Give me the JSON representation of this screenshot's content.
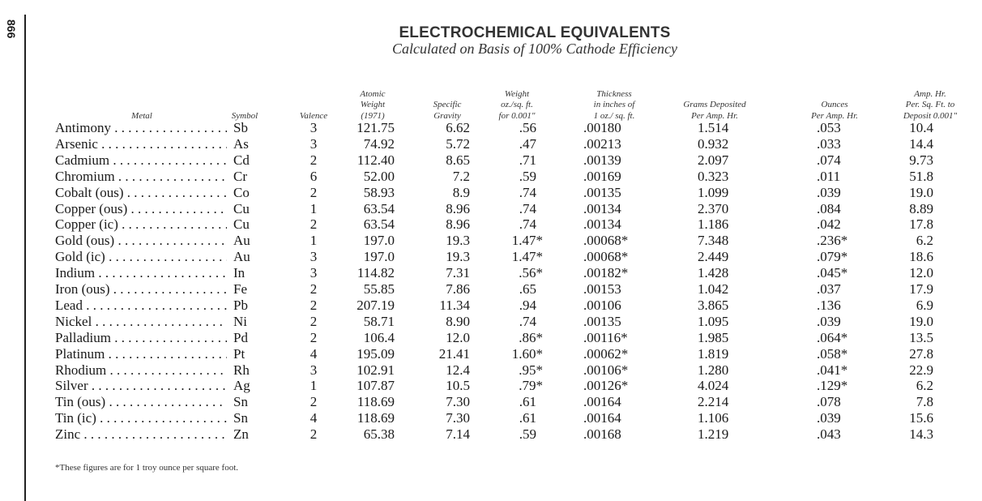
{
  "page_number": "866",
  "title": "ELECTROCHEMICAL EQUIVALENTS",
  "subtitle": "Calculated on Basis of 100% Cathode Efficiency",
  "headers": {
    "metal": [
      "Metal"
    ],
    "symbol": [
      "Symbol"
    ],
    "valence": [
      "Valence"
    ],
    "atomic_weight": [
      "Atomic",
      "Weight",
      "(1971)"
    ],
    "specific_gravity": [
      "Specific",
      "Gravity"
    ],
    "weight": [
      "Weight",
      "oz./sq. ft.",
      "for 0.001\""
    ],
    "thickness": [
      "Thickness",
      "in inches of",
      "1 oz./ sq. ft."
    ],
    "grams": [
      "Grams Deposited",
      "Per Amp. Hr."
    ],
    "ounces": [
      "Ounces",
      "Per Amp. Hr."
    ],
    "amp_hr": [
      "Amp. Hr.",
      "Per. Sq. Ft. to",
      "Deposit 0.001\""
    ]
  },
  "rows": [
    [
      "Antimony",
      "Sb",
      "3",
      "121.75",
      "6.62",
      ".56",
      ".00180",
      "1.514",
      ".053",
      "10.4"
    ],
    [
      "Arsenic",
      "As",
      "3",
      "74.92",
      "5.72",
      ".47",
      ".00213",
      "0.932",
      ".033",
      "14.4"
    ],
    [
      "Cadmium",
      "Cd",
      "2",
      "112.40",
      "8.65",
      ".71",
      ".00139",
      "2.097",
      ".074",
      "9.73"
    ],
    [
      "Chromium",
      "Cr",
      "6",
      "52.00",
      "7.2",
      ".59",
      ".00169",
      "0.323",
      ".011",
      "51.8"
    ],
    [
      "Cobalt (ous)",
      "Co",
      "2",
      "58.93",
      "8.9",
      ".74",
      ".00135",
      "1.099",
      ".039",
      "19.0"
    ],
    [
      "Copper (ous)",
      "Cu",
      "1",
      "63.54",
      "8.96",
      ".74",
      ".00134",
      "2.370",
      ".084",
      "8.89"
    ],
    [
      "Copper (ic)",
      "Cu",
      "2",
      "63.54",
      "8.96",
      ".74",
      ".00134",
      "1.186",
      ".042",
      "17.8"
    ],
    [
      "Gold (ous)",
      "Au",
      "1",
      "197.0",
      "19.3",
      "1.47*",
      ".00068*",
      "7.348",
      ".236*",
      "6.2"
    ],
    [
      "Gold (ic)",
      "Au",
      "3",
      "197.0",
      "19.3",
      "1.47*",
      ".00068*",
      "2.449",
      ".079*",
      "18.6"
    ],
    [
      "Indium",
      "In",
      "3",
      "114.82",
      "7.31",
      ".56*",
      ".00182*",
      "1.428",
      ".045*",
      "12.0"
    ],
    [
      "Iron (ous)",
      "Fe",
      "2",
      "55.85",
      "7.86",
      ".65",
      ".00153",
      "1.042",
      ".037",
      "17.9"
    ],
    [
      "Lead",
      "Pb",
      "2",
      "207.19",
      "11.34",
      ".94",
      ".00106",
      "3.865",
      ".136",
      "6.9"
    ],
    [
      "Nickel",
      "Ni",
      "2",
      "58.71",
      "8.90",
      ".74",
      ".00135",
      "1.095",
      ".039",
      "19.0"
    ],
    [
      "Palladium",
      "Pd",
      "2",
      "106.4",
      "12.0",
      ".86*",
      ".00116*",
      "1.985",
      ".064*",
      "13.5"
    ],
    [
      "Platinum",
      "Pt",
      "4",
      "195.09",
      "21.41",
      "1.60*",
      ".00062*",
      "1.819",
      ".058*",
      "27.8"
    ],
    [
      "Rhodium",
      "Rh",
      "3",
      "102.91",
      "12.4",
      ".95*",
      ".00106*",
      "1.280",
      ".041*",
      "22.9"
    ],
    [
      "Silver",
      "Ag",
      "1",
      "107.87",
      "10.5",
      ".79*",
      ".00126*",
      "4.024",
      ".129*",
      "6.2"
    ],
    [
      "Tin (ous)",
      "Sn",
      "2",
      "118.69",
      "7.30",
      ".61",
      ".00164",
      "2.214",
      ".078",
      "7.8"
    ],
    [
      "Tin (ic)",
      "Sn",
      "4",
      "118.69",
      "7.30",
      ".61",
      ".00164",
      "1.106",
      ".039",
      "15.6"
    ],
    [
      "Zinc",
      "Zn",
      "2",
      "65.38",
      "7.14",
      ".59",
      ".00168",
      "1.219",
      ".043",
      "14.3"
    ]
  ],
  "footnote": "*These figures are for 1 troy ounce per square foot."
}
